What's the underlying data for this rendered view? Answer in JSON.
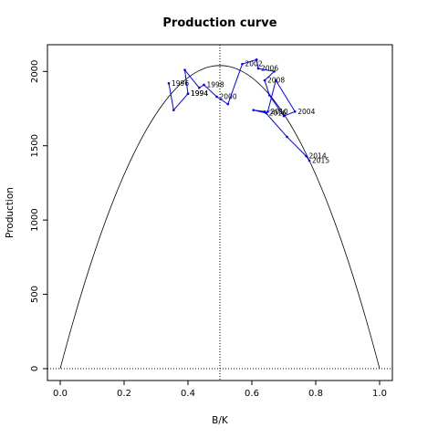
{
  "chart_data": {
    "type": "line",
    "title": "Production curve",
    "xlabel": "B/K",
    "ylabel": "Production",
    "xlim": [
      -0.04,
      1.04
    ],
    "ylim": [
      -80,
      2180
    ],
    "xticks": [
      "0.0",
      "0.2",
      "0.4",
      "0.6",
      "0.8",
      "1.0"
    ],
    "yticks": [
      "0",
      "500",
      "1000",
      "1500",
      "2000"
    ],
    "curve": {
      "name": "",
      "peak_x": 0.5,
      "peak_y": 2040,
      "color": "#000000"
    },
    "vline_x": 0.5,
    "hline_y": 0,
    "series_color": "#0000ff",
    "observations": [
      {
        "year": "1996",
        "x": 0.34,
        "y": 1920
      },
      {
        "year": "",
        "x": 0.355,
        "y": 1740
      },
      {
        "year": "1994",
        "x": 0.4,
        "y": 1850
      },
      {
        "year": "1994",
        "x": 0.4,
        "y": 1850
      },
      {
        "year": "",
        "x": 0.39,
        "y": 2010
      },
      {
        "year": "",
        "x": 0.435,
        "y": 1890
      },
      {
        "year": "1998",
        "x": 0.45,
        "y": 1910
      },
      {
        "year": "2000",
        "x": 0.49,
        "y": 1830
      },
      {
        "year": "",
        "x": 0.525,
        "y": 1780
      },
      {
        "year": "2002",
        "x": 0.57,
        "y": 2050
      },
      {
        "year": "",
        "x": 0.615,
        "y": 2080
      },
      {
        "year": "2006",
        "x": 0.62,
        "y": 2020
      },
      {
        "year": "",
        "x": 0.67,
        "y": 2000
      },
      {
        "year": "2008",
        "x": 0.64,
        "y": 1940
      },
      {
        "year": "",
        "x": 0.655,
        "y": 1840
      },
      {
        "year": "",
        "x": 0.7,
        "y": 1700
      },
      {
        "year": "2004",
        "x": 0.735,
        "y": 1730
      },
      {
        "year": "",
        "x": 0.675,
        "y": 1940
      },
      {
        "year": "2010",
        "x": 0.65,
        "y": 1730
      },
      {
        "year": "2016",
        "x": 0.645,
        "y": 1720
      },
      {
        "year": "",
        "x": 0.605,
        "y": 1740
      },
      {
        "year": "",
        "x": 0.64,
        "y": 1730
      },
      {
        "year": "",
        "x": 0.71,
        "y": 1560
      },
      {
        "year": "2014",
        "x": 0.77,
        "y": 1430
      },
      {
        "year": "2015",
        "x": 0.78,
        "y": 1400
      }
    ]
  }
}
